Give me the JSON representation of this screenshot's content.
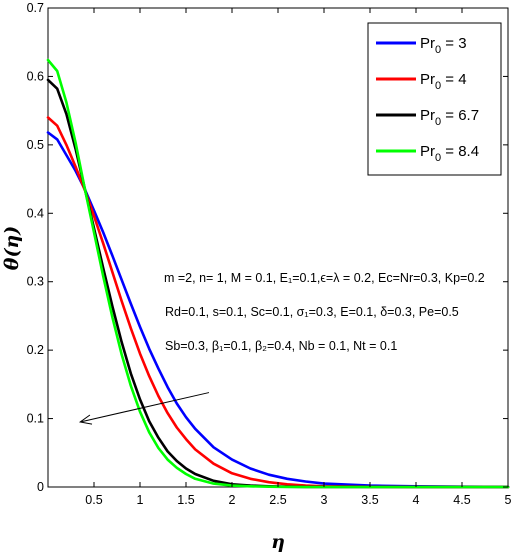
{
  "chart_data": {
    "type": "line",
    "xlabel": "η",
    "ylabel": "θ(η)",
    "xlim": [
      0,
      5
    ],
    "ylim": [
      0,
      0.7
    ],
    "xticks": [
      "0.5",
      "1",
      "1.5",
      "2",
      "2.5",
      "3",
      "3.5",
      "4",
      "4.5",
      "5"
    ],
    "yticks": [
      "0",
      "0.1",
      "0.2",
      "0.3",
      "0.4",
      "0.5",
      "0.6",
      "0.7"
    ],
    "grid": false,
    "legend_position": "top-right",
    "series": [
      {
        "name": "Pr0 = 3",
        "legend_main": "Pr",
        "legend_sub": "0",
        "legend_rest": " = 3",
        "color": "#0000ff",
        "x": [
          0,
          0.1,
          0.2,
          0.3,
          0.4,
          0.5,
          0.6,
          0.7,
          0.8,
          0.9,
          1.0,
          1.1,
          1.2,
          1.3,
          1.4,
          1.5,
          1.6,
          1.8,
          2.0,
          2.2,
          2.4,
          2.6,
          2.8,
          3.0,
          3.5,
          4.0,
          4.5,
          5.0
        ],
        "y": [
          0.518,
          0.508,
          0.485,
          0.462,
          0.435,
          0.404,
          0.372,
          0.338,
          0.303,
          0.268,
          0.234,
          0.202,
          0.173,
          0.146,
          0.122,
          0.102,
          0.085,
          0.058,
          0.04,
          0.027,
          0.018,
          0.012,
          0.008,
          0.005,
          0.002,
          0.001,
          0.0004,
          0.0001
        ]
      },
      {
        "name": "Pr0 = 4",
        "legend_main": "Pr",
        "legend_sub": "0",
        "legend_rest": " = 4",
        "color": "#ff0000",
        "x": [
          0,
          0.1,
          0.2,
          0.3,
          0.4,
          0.5,
          0.6,
          0.7,
          0.8,
          0.9,
          1.0,
          1.1,
          1.2,
          1.3,
          1.4,
          1.5,
          1.6,
          1.8,
          2.0,
          2.2,
          2.4,
          2.6,
          2.8,
          3.0,
          3.5,
          4.0,
          4.5,
          5.0
        ],
        "y": [
          0.54,
          0.528,
          0.5,
          0.468,
          0.434,
          0.396,
          0.356,
          0.314,
          0.272,
          0.232,
          0.195,
          0.162,
          0.133,
          0.108,
          0.087,
          0.07,
          0.055,
          0.034,
          0.02,
          0.012,
          0.007,
          0.004,
          0.002,
          0.001,
          0.0003,
          0.0001,
          0,
          0
        ]
      },
      {
        "name": "Pr0 = 6.7",
        "legend_main": "Pr",
        "legend_sub": "0",
        "legend_rest": " = 6.7",
        "color": "#000000",
        "x": [
          0,
          0.1,
          0.2,
          0.3,
          0.4,
          0.5,
          0.6,
          0.7,
          0.8,
          0.9,
          1.0,
          1.1,
          1.2,
          1.3,
          1.4,
          1.5,
          1.6,
          1.8,
          2.0,
          2.2,
          2.4,
          2.6,
          2.8,
          3.0,
          3.5,
          4.0,
          4.5,
          5.0
        ],
        "y": [
          0.595,
          0.582,
          0.545,
          0.494,
          0.436,
          0.378,
          0.32,
          0.264,
          0.212,
          0.166,
          0.128,
          0.096,
          0.072,
          0.052,
          0.038,
          0.027,
          0.019,
          0.009,
          0.004,
          0.002,
          0.001,
          0.0004,
          0.0002,
          0.0001,
          0,
          0,
          0,
          0
        ]
      },
      {
        "name": "Pr0 = 8.4",
        "legend_main": "Pr",
        "legend_sub": "0",
        "legend_rest": " = 8.4",
        "color": "#00ff00",
        "x": [
          0,
          0.1,
          0.2,
          0.3,
          0.4,
          0.5,
          0.6,
          0.7,
          0.8,
          0.9,
          1.0,
          1.1,
          1.2,
          1.3,
          1.4,
          1.5,
          1.6,
          1.8,
          2.0,
          2.2,
          2.4,
          2.6,
          2.8,
          3.0,
          3.5,
          4.0,
          4.5,
          5.0
        ],
        "y": [
          0.624,
          0.608,
          0.562,
          0.503,
          0.436,
          0.372,
          0.308,
          0.248,
          0.194,
          0.148,
          0.11,
          0.08,
          0.057,
          0.04,
          0.028,
          0.019,
          0.012,
          0.005,
          0.002,
          0.001,
          0.0004,
          0.0001,
          0,
          0,
          0,
          0,
          0,
          0
        ]
      }
    ],
    "annotations": [
      "m =2, n= 1, M = 0.1, E₁=0.1,ϵ=λ = 0.2, Ec=Nr=0.3, Kp=0.2",
      "Rd=0.1, s=0.1, Sc=0.1, σ₁=0.3, E=0.1, δ=0.3, Pe=0.5",
      "Sb=0.3, β₁=0.1, β₂=0.4, Nb = 0.1, Nt = 0.1"
    ],
    "arrow": {
      "from": [
        1.75,
        0.138
      ],
      "to": [
        0.35,
        0.095
      ]
    }
  }
}
